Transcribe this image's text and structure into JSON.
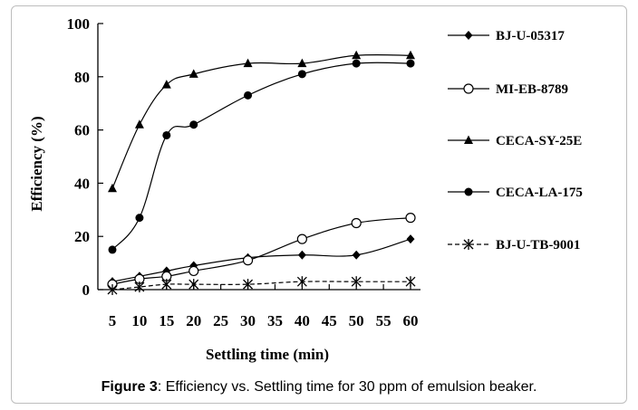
{
  "caption": {
    "label": "Figure 3",
    "text": ": Efficiency vs. Settling time for 30 ppm of emulsion beaker."
  },
  "chart_data": {
    "type": "line",
    "xlabel": "Settling time  (min)",
    "ylabel": "Efficiency  (%)",
    "x_ticks": [
      5,
      10,
      15,
      20,
      25,
      30,
      35,
      40,
      45,
      50,
      55,
      60
    ],
    "y_ticks": [
      0,
      20,
      40,
      60,
      80,
      100
    ],
    "xlim": [
      5,
      60
    ],
    "ylim": [
      0,
      100
    ],
    "grid": false,
    "legend_position": "right",
    "x": [
      5,
      10,
      15,
      20,
      30,
      40,
      50,
      60
    ],
    "series": [
      {
        "name": "BJ-U-05317",
        "marker": "diamond",
        "line": "solid",
        "color": "#000000",
        "values": [
          3,
          5,
          7,
          9,
          12,
          13,
          13,
          19
        ]
      },
      {
        "name": "MI-EB-8789",
        "marker": "circle-open",
        "line": "solid",
        "color": "#000000",
        "values": [
          2,
          4,
          5,
          7,
          11,
          19,
          25,
          27
        ]
      },
      {
        "name": "CECA-SY-25E",
        "marker": "triangle",
        "line": "solid",
        "color": "#000000",
        "values": [
          38,
          62,
          77,
          81,
          85,
          85,
          88,
          88
        ]
      },
      {
        "name": "CECA-LA-175",
        "marker": "circle-filled",
        "line": "solid",
        "color": "#000000",
        "values": [
          15,
          27,
          58,
          62,
          73,
          81,
          85,
          85
        ]
      },
      {
        "name": "BJ-U-TB-9001",
        "marker": "asterisk",
        "line": "dashed",
        "color": "#000000",
        "values": [
          0,
          1,
          2,
          2,
          2,
          3,
          3,
          3
        ]
      }
    ]
  }
}
